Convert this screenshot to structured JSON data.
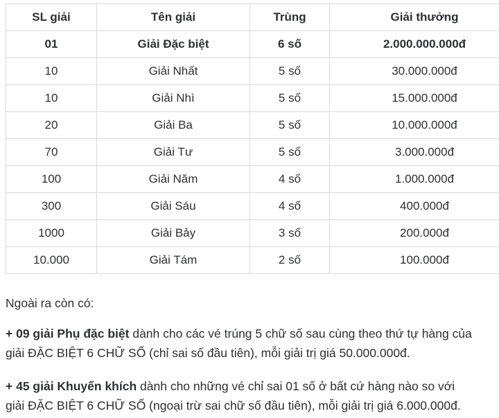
{
  "table": {
    "headers": [
      "SL giải",
      "Tên giải",
      "Trùng",
      "Giải thưởng"
    ],
    "rows": [
      {
        "sl": "01",
        "ten": "Giải Đặc biệt",
        "trung": "6 số",
        "thuong": "2.000.000.000đ",
        "bold": true
      },
      {
        "sl": "10",
        "ten": "Giải Nhất",
        "trung": "5 số",
        "thuong": "30.000.000đ",
        "bold": false
      },
      {
        "sl": "10",
        "ten": "Giải Nhì",
        "trung": "5 số",
        "thuong": "15.000.000đ",
        "bold": false
      },
      {
        "sl": "20",
        "ten": "Giải Ba",
        "trung": "5 số",
        "thuong": "10.000.000đ",
        "bold": false
      },
      {
        "sl": "70",
        "ten": "Giải Tư",
        "trung": "5 số",
        "thuong": "3.000.000đ",
        "bold": false
      },
      {
        "sl": "100",
        "ten": "Giải Năm",
        "trung": "4 số",
        "thuong": "1.000.000đ",
        "bold": false
      },
      {
        "sl": "300",
        "ten": "Giải Sáu",
        "trung": "4 số",
        "thuong": "400.000đ",
        "bold": false
      },
      {
        "sl": "1000",
        "ten": "Giải Bảy",
        "trung": "3 số",
        "thuong": "200.000đ",
        "bold": false
      },
      {
        "sl": "10.000",
        "ten": "Giải Tám",
        "trung": "2 số",
        "thuong": "100.000đ",
        "bold": false
      }
    ]
  },
  "notes": {
    "intro": "Ngoài ra còn có:",
    "items": [
      {
        "bold": "+ 09 giải Phụ đặc biệt",
        "rest": " dành cho các vé trúng 5 chữ số sau cùng theo thứ tự hàng của giải ĐẶC BIỆT 6 CHỮ SỐ (chỉ sai số đầu tiên), mỗi giải trị giá 50.000.000đ."
      },
      {
        "bold": "+ 45 giải Khuyến khích",
        "rest": " dành cho những vé chỉ sai 01 số ở bất cứ hàng nào so với giải ĐẶC BIỆT 6 CHỮ SỐ (ngoại trừ sai chữ số đầu tiên), mỗi giải trị giá 6.000.000đ."
      }
    ]
  },
  "colors": {
    "background": "#ffffff",
    "border": "#d9d9de",
    "text": "#2e2f33"
  }
}
